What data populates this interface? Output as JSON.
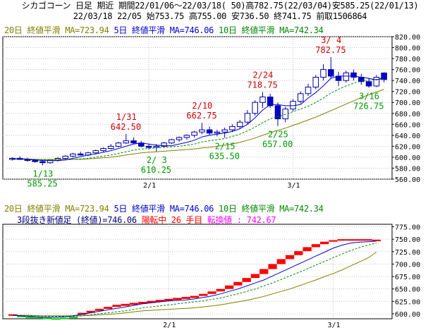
{
  "header": {
    "line1": "シカゴコーン 日足 期近 期間22/01/06～22/03/18( 50)高782.75(22/03/04)安585.25(22/01/13)",
    "line2": "22/03/18 22/05 始753.75 高755.00 安736.50 終741.75 前取1506864"
  },
  "colors": {
    "ma20": "#808000",
    "ma5": "#0000cc",
    "ma10": "#008800",
    "up": "#ffffff",
    "down": "#0000cc",
    "rise": "#ff0000",
    "fall": "#00cc00",
    "annot_red": "#cc0000",
    "annot_green": "#009900",
    "magenta": "#ff00ff"
  },
  "legend": {
    "ma20": "20日 終値平滑 MA=723.94",
    "ma5": "5日 終値平滑 MA=746.06",
    "ma10": "10日 終値平滑 MA=742.34"
  },
  "lower_info": {
    "prefix": "3段抜き新値足 (終値)=746.06",
    "state": "陽転中",
    "count": "26 手目",
    "reversal": "転換値 : 742.67"
  },
  "chart_data": [
    {
      "type": "candlestick",
      "ylim": [
        560,
        820
      ],
      "yticks": [
        "560.00",
        "580.00",
        "600.00",
        "620.00",
        "640.00",
        "660.00",
        "680.00",
        "700.00",
        "720.00",
        "740.00",
        "760.00",
        "780.00",
        "800.00",
        "820.00"
      ],
      "xticks": [
        {
          "label": "2/1",
          "index": 18
        },
        {
          "label": "3/1",
          "index": 37
        }
      ],
      "ohlc": [
        [
          596,
          600,
          594,
          598
        ],
        [
          598,
          602,
          595,
          596
        ],
        [
          596,
          599,
          592,
          594
        ],
        [
          594,
          597,
          590,
          592
        ],
        [
          592,
          595,
          585.25,
          590
        ],
        [
          590,
          596,
          588,
          594
        ],
        [
          594,
          600,
          592,
          598
        ],
        [
          598,
          604,
          596,
          602
        ],
        [
          602,
          608,
          600,
          606
        ],
        [
          606,
          610,
          603,
          604
        ],
        [
          604,
          610,
          602,
          608
        ],
        [
          608,
          614,
          606,
          612
        ],
        [
          612,
          618,
          610,
          616
        ],
        [
          616,
          624,
          614,
          620
        ],
        [
          620,
          628,
          618,
          626
        ],
        [
          626,
          642.5,
          624,
          630
        ],
        [
          630,
          636,
          624,
          626
        ],
        [
          626,
          630,
          618,
          620
        ],
        [
          620,
          624,
          614,
          618
        ],
        [
          618,
          624,
          610.25,
          620
        ],
        [
          620,
          628,
          618,
          626
        ],
        [
          626,
          634,
          624,
          632
        ],
        [
          632,
          638,
          628,
          636
        ],
        [
          636,
          642,
          632,
          640
        ],
        [
          640,
          648,
          636,
          646
        ],
        [
          646,
          662.75,
          642,
          650
        ],
        [
          650,
          656,
          640,
          644
        ],
        [
          644,
          650,
          638,
          646
        ],
        [
          646,
          654,
          635.5,
          650
        ],
        [
          650,
          660,
          646,
          656
        ],
        [
          656,
          668,
          652,
          664
        ],
        [
          664,
          686,
          660,
          680
        ],
        [
          680,
          704,
          676,
          700
        ],
        [
          700,
          718.75,
          690,
          710
        ],
        [
          710,
          716,
          690,
          694
        ],
        [
          694,
          700,
          657,
          670
        ],
        [
          670,
          692,
          664,
          688
        ],
        [
          688,
          706,
          684,
          702
        ],
        [
          702,
          720,
          698,
          716
        ],
        [
          716,
          734,
          712,
          728
        ],
        [
          728,
          750,
          724,
          746
        ],
        [
          746,
          770,
          740,
          760
        ],
        [
          760,
          782.75,
          744,
          748
        ],
        [
          748,
          756,
          730,
          740
        ],
        [
          740,
          758,
          736,
          754
        ],
        [
          754,
          760,
          740,
          746
        ],
        [
          746,
          752,
          732,
          738
        ],
        [
          738,
          744,
          726.75,
          730
        ],
        [
          730,
          750,
          728,
          746
        ],
        [
          753.75,
          755,
          736.5,
          741.75
        ]
      ],
      "ma5": [
        597,
        597,
        596,
        595,
        594,
        594,
        594,
        595,
        598,
        601,
        604,
        606,
        609,
        612,
        616,
        620,
        624,
        626,
        624,
        622,
        621,
        621,
        624,
        627,
        631,
        637,
        640,
        642,
        644,
        647,
        652,
        660,
        672,
        686,
        696,
        696,
        694,
        694,
        696,
        708,
        718,
        730,
        744,
        748,
        748,
        748,
        746,
        744,
        741,
        746.06
      ],
      "ma10": [
        597,
        597,
        596,
        596,
        595,
        595,
        595,
        595,
        596,
        597,
        598,
        600,
        602,
        604,
        607,
        610,
        613,
        615,
        616,
        617,
        618,
        619,
        620,
        622,
        624,
        628,
        630,
        632,
        634,
        638,
        642,
        648,
        655,
        663,
        670,
        674,
        678,
        683,
        688,
        693,
        700,
        708,
        717,
        724,
        730,
        735,
        739,
        741,
        742,
        742.34
      ],
      "ma20": [
        597,
        597,
        597,
        596,
        596,
        596,
        596,
        596,
        596,
        596,
        597,
        598,
        599,
        600,
        602,
        604,
        606,
        608,
        609,
        610,
        611,
        612,
        613,
        614,
        615,
        617,
        618,
        620,
        622,
        624,
        627,
        631,
        635,
        640,
        645,
        649,
        653,
        658,
        663,
        668,
        673,
        679,
        685,
        691,
        697,
        703,
        709,
        714,
        719,
        723.94
      ],
      "annotations": [
        {
          "date": "1/13",
          "value": "585.25",
          "index": 4,
          "kind": "low"
        },
        {
          "date": "1/31",
          "value": "642.50",
          "index": 15,
          "kind": "high"
        },
        {
          "date": "2/ 3",
          "value": "610.25",
          "index": 19,
          "kind": "low"
        },
        {
          "date": "2/10",
          "value": "662.75",
          "index": 25,
          "kind": "high"
        },
        {
          "date": "2/15",
          "value": "635.50",
          "index": 28,
          "kind": "low"
        },
        {
          "date": "2/24",
          "value": "718.75",
          "index": 33,
          "kind": "high"
        },
        {
          "date": "2/25",
          "value": "657.00",
          "index": 35,
          "kind": "low"
        },
        {
          "date": "3/ 4",
          "value": "782.75",
          "index": 42,
          "kind": "high"
        },
        {
          "date": "3/16",
          "value": "726.75",
          "index": 47,
          "kind": "low"
        }
      ]
    },
    {
      "type": "new-price-bricks",
      "ylim": [
        590,
        780
      ],
      "yticks": [
        "600.00",
        "625.00",
        "650.00",
        "675.00",
        "700.00",
        "725.00",
        "750.00",
        "775.00"
      ],
      "xticks": [
        {
          "label": "2/1",
          "index": 18
        },
        {
          "label": "3/1",
          "index": 37
        }
      ],
      "bricks": [
        {
          "low": 596,
          "high": 599,
          "dir": "up"
        },
        {
          "low": 594,
          "high": 596,
          "dir": "down"
        },
        {
          "low": 593,
          "high": 594,
          "dir": "down"
        },
        {
          "low": 592,
          "high": 593,
          "dir": "down"
        },
        {
          "low": 591,
          "high": 592,
          "dir": "down"
        },
        {
          "low": 590,
          "high": 591,
          "dir": "down"
        },
        {
          "low": 591,
          "high": 592,
          "dir": "down"
        },
        {
          "low": 592,
          "high": 594,
          "dir": "down"
        },
        {
          "low": 598,
          "high": 602,
          "dir": "up"
        },
        {
          "low": 602,
          "high": 606,
          "dir": "up"
        },
        {
          "low": 606,
          "high": 610,
          "dir": "up"
        },
        {
          "low": 610,
          "high": 614,
          "dir": "up"
        },
        {
          "low": 614,
          "high": 618,
          "dir": "up"
        },
        {
          "low": 616,
          "high": 620,
          "dir": "up"
        },
        {
          "low": 618,
          "high": 622,
          "dir": "up"
        },
        {
          "low": 620,
          "high": 624,
          "dir": "up"
        },
        {
          "low": 622,
          "high": 626,
          "dir": "up"
        },
        {
          "low": 624,
          "high": 628,
          "dir": "up"
        },
        {
          "low": 626,
          "high": 630,
          "dir": "up"
        },
        {
          "low": 628,
          "high": 632,
          "dir": "up"
        },
        {
          "low": 630,
          "high": 634,
          "dir": "up"
        },
        {
          "low": 632,
          "high": 636,
          "dir": "up"
        },
        {
          "low": 636,
          "high": 640,
          "dir": "up"
        },
        {
          "low": 640,
          "high": 645,
          "dir": "up"
        },
        {
          "low": 645,
          "high": 650,
          "dir": "up"
        },
        {
          "low": 650,
          "high": 657,
          "dir": "up"
        },
        {
          "low": 657,
          "high": 664,
          "dir": "up"
        },
        {
          "low": 664,
          "high": 672,
          "dir": "up"
        },
        {
          "low": 672,
          "high": 680,
          "dir": "up"
        },
        {
          "low": 680,
          "high": 690,
          "dir": "up"
        },
        {
          "low": 690,
          "high": 700,
          "dir": "up"
        },
        {
          "low": 700,
          "high": 710,
          "dir": "up"
        },
        {
          "low": 710,
          "high": 718,
          "dir": "up"
        },
        {
          "low": 718,
          "high": 726,
          "dir": "up"
        },
        {
          "low": 726,
          "high": 734,
          "dir": "up"
        },
        {
          "low": 734,
          "high": 740,
          "dir": "up"
        },
        {
          "low": 740,
          "high": 745,
          "dir": "up"
        },
        {
          "low": 745,
          "high": 748,
          "dir": "up"
        },
        {
          "low": 747,
          "high": 750,
          "dir": "up"
        },
        {
          "low": 747,
          "high": 750,
          "dir": "up"
        },
        {
          "low": 747,
          "high": 750,
          "dir": "up"
        },
        {
          "low": 747,
          "high": 750,
          "dir": "up"
        },
        {
          "low": 746,
          "high": 749,
          "dir": "up"
        }
      ],
      "ma5": [
        597,
        596,
        595,
        594,
        593,
        593,
        594,
        596,
        599,
        602,
        605,
        608,
        611,
        614,
        617,
        620,
        622,
        624,
        626,
        627,
        628,
        630,
        633,
        636,
        640,
        645,
        650,
        656,
        662,
        668,
        676,
        684,
        692,
        700,
        708,
        716,
        724,
        732,
        738,
        742,
        744,
        745,
        746.06
      ],
      "ma10": [
        597,
        597,
        596,
        596,
        595,
        595,
        595,
        595,
        596,
        598,
        600,
        602,
        604,
        606,
        609,
        612,
        614,
        616,
        618,
        620,
        622,
        624,
        626,
        629,
        632,
        636,
        640,
        645,
        650,
        656,
        662,
        669,
        676,
        683,
        690,
        698,
        705,
        713,
        720,
        727,
        733,
        738,
        742.34
      ],
      "ma20": [
        597,
        597,
        597,
        596,
        596,
        596,
        596,
        596,
        596,
        597,
        598,
        599,
        600,
        602,
        604,
        606,
        607,
        608,
        609,
        610,
        611,
        612,
        614,
        616,
        618,
        621,
        624,
        627,
        631,
        635,
        640,
        645,
        650,
        656,
        662,
        668,
        675,
        681,
        688,
        696,
        704,
        712,
        723.94
      ]
    }
  ]
}
